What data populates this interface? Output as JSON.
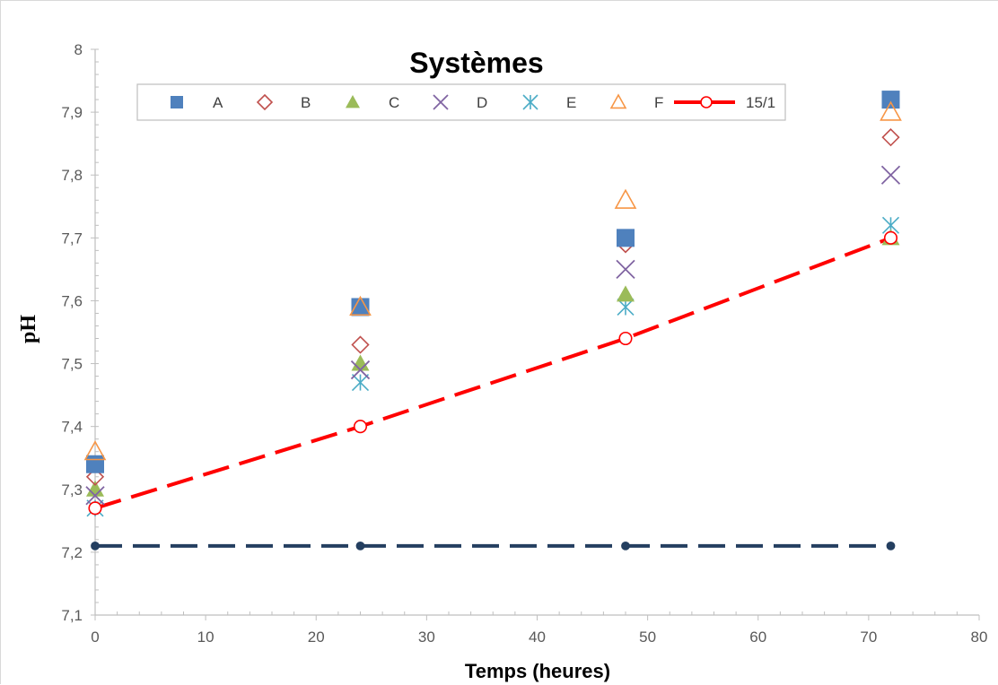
{
  "chart_data": {
    "type": "scatter",
    "title": "Systèmes",
    "xlabel": "Temps (heures)",
    "ylabel": "pH",
    "xlim": [
      0,
      80
    ],
    "ylim": [
      7.1,
      8
    ],
    "x_ticks": [
      "0",
      "10",
      "20",
      "30",
      "40",
      "50",
      "60",
      "70",
      "80"
    ],
    "y_ticks": [
      "7,1",
      "7,2",
      "7,3",
      "7,4",
      "7,5",
      "7,6",
      "7,7",
      "7,8",
      "7,9",
      "8"
    ],
    "grid": false,
    "legend_position": "top",
    "x": [
      0,
      24,
      48,
      72
    ],
    "series": [
      {
        "name": "A",
        "marker": "square",
        "color": "#4f81bd",
        "values": [
          7.34,
          7.59,
          7.7,
          7.92
        ]
      },
      {
        "name": "B",
        "marker": "diamond-open",
        "color": "#c0504d",
        "values": [
          7.32,
          7.53,
          7.69,
          7.86
        ]
      },
      {
        "name": "C",
        "marker": "triangle",
        "color": "#9bbb59",
        "values": [
          7.3,
          7.5,
          7.61,
          7.7
        ]
      },
      {
        "name": "D",
        "marker": "x",
        "color": "#8064a2",
        "values": [
          7.29,
          7.49,
          7.65,
          7.8
        ]
      },
      {
        "name": "E",
        "marker": "star",
        "color": "#4bacc6",
        "values": [
          7.27,
          7.47,
          7.59,
          7.72
        ]
      },
      {
        "name": "F",
        "marker": "triangle-open",
        "color": "#f79646",
        "values": [
          7.36,
          7.59,
          7.76,
          7.9
        ]
      },
      {
        "name": "15/1",
        "marker": "circle-open",
        "color": "#ff0000",
        "line": "dashed",
        "values": [
          7.27,
          7.4,
          7.54,
          7.7
        ]
      },
      {
        "name": "",
        "marker": "circle",
        "color": "#243f60",
        "line": "dashed",
        "values": [
          7.21,
          7.21,
          7.21,
          7.21
        ]
      }
    ]
  }
}
